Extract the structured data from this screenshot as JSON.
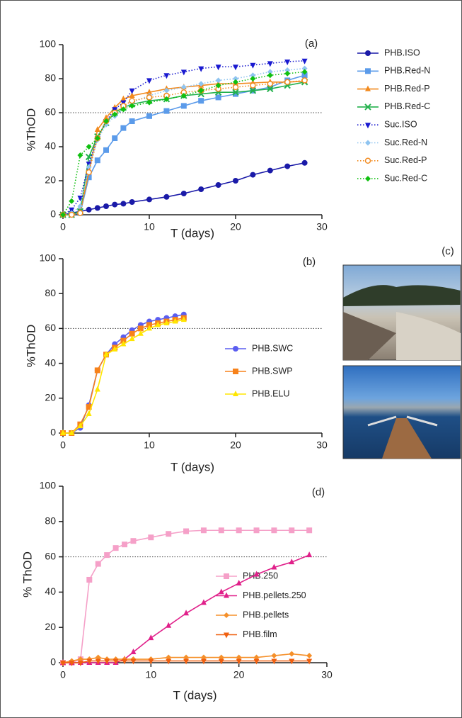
{
  "chart_data": [
    {
      "type": "line",
      "label": "(a)",
      "xlabel": "T (days)",
      "ylabel": "%ThOD",
      "xlim": [
        0,
        30
      ],
      "xticks": [
        0,
        10,
        20,
        30
      ],
      "ylim": [
        0,
        100
      ],
      "yticks": [
        0,
        20,
        40,
        60,
        80,
        100
      ],
      "hline": 60,
      "legend": "right",
      "x": [
        0,
        1,
        2,
        3,
        4,
        5,
        6,
        7,
        8,
        10,
        12,
        14,
        16,
        18,
        20,
        22,
        24,
        26,
        28
      ],
      "series": [
        {
          "name": "PHB.ISO",
          "color": "#1a1aa8",
          "marker": "circle",
          "dash": "solid",
          "values": [
            0,
            1,
            2,
            3,
            4,
            5,
            6,
            6.5,
            7.5,
            9,
            10.5,
            12.5,
            15,
            17.5,
            20,
            23.5,
            26,
            28.5,
            30.5
          ]
        },
        {
          "name": "PHB.Red-N",
          "color": "#5b9bea",
          "marker": "square",
          "dash": "solid",
          "values": [
            0,
            0,
            1,
            22,
            32,
            38,
            45,
            51,
            55,
            58,
            61,
            64,
            67,
            69,
            71,
            73,
            75,
            79,
            82
          ]
        },
        {
          "name": "PHB.Red-P",
          "color": "#f28a1e",
          "marker": "triangle",
          "dash": "solid",
          "values": [
            0,
            0,
            2,
            25,
            50,
            57,
            63,
            68,
            70,
            72,
            74,
            75,
            76,
            77,
            77,
            77.5,
            78,
            78,
            78.5
          ]
        },
        {
          "name": "PHB.Red-C",
          "color": "#22b14c",
          "marker": "cross",
          "dash": "solid",
          "values": [
            0,
            0,
            2,
            34,
            46,
            54,
            60,
            63,
            65,
            67,
            68,
            70,
            71,
            72,
            72,
            73,
            74,
            76,
            78
          ]
        },
        {
          "name": "Suc.ISO",
          "color": "#1a1ad0",
          "marker": "triangle-down",
          "dash": "dotted",
          "values": [
            0,
            3,
            10,
            30,
            45,
            55,
            62,
            66,
            73,
            79,
            82,
            84,
            86,
            87,
            87,
            88,
            89,
            90,
            90.5
          ]
        },
        {
          "name": "Suc.Red-N",
          "color": "#8fc4f0",
          "marker": "diamond",
          "dash": "dotted",
          "values": [
            0,
            1,
            5,
            28,
            44,
            53,
            58,
            62,
            66,
            70,
            73,
            75,
            77,
            79,
            80,
            82,
            84,
            85,
            86
          ]
        },
        {
          "name": "Suc.Red-P",
          "color": "#f28a1e",
          "marker": "open-circle",
          "dash": "dotted",
          "values": [
            0,
            0,
            1,
            25,
            45,
            55,
            60,
            64,
            67,
            69,
            70,
            72,
            73,
            74,
            75,
            76,
            77,
            78,
            79
          ]
        },
        {
          "name": "Suc.Red-C",
          "color": "#10c010",
          "marker": "diamond",
          "dash": "dotted",
          "values": [
            0,
            8,
            35,
            40,
            45,
            55,
            59,
            62,
            64,
            66,
            68,
            70,
            73,
            76,
            78,
            80,
            82,
            83,
            84
          ]
        }
      ]
    },
    {
      "type": "line",
      "label": "(b)",
      "xlabel": "T (days)",
      "ylabel": "%ThOD",
      "xlim": [
        0,
        30
      ],
      "xticks": [
        0,
        10,
        20,
        30
      ],
      "ylim": [
        0,
        100
      ],
      "yticks": [
        0,
        20,
        40,
        60,
        80,
        100
      ],
      "hline": 60,
      "legend": "center-right",
      "x": [
        0,
        1,
        2,
        3,
        4,
        5,
        6,
        7,
        8,
        9,
        10,
        11,
        12,
        13,
        14
      ],
      "series": [
        {
          "name": "PHB.SWC",
          "color": "#5b5ef0",
          "marker": "circle",
          "dash": "solid",
          "values": [
            0,
            0,
            3,
            16,
            36,
            45,
            51,
            55,
            59,
            62,
            64,
            65,
            66,
            67,
            68
          ]
        },
        {
          "name": "PHB.SWP",
          "color": "#f7821b",
          "marker": "square",
          "dash": "solid",
          "values": [
            0,
            0,
            5,
            15,
            36,
            45,
            49,
            53,
            57,
            60,
            62,
            63,
            64,
            65,
            66
          ]
        },
        {
          "name": "PHB.ELU",
          "color": "#ffe600",
          "marker": "triangle",
          "dash": "solid",
          "values": [
            0,
            0,
            4,
            11,
            25,
            45,
            48,
            51,
            54,
            57,
            60,
            62,
            63,
            64,
            65
          ]
        }
      ]
    },
    {
      "type": "photos",
      "label": "(c)"
    },
    {
      "type": "line",
      "label": "(d)",
      "xlabel": "T (days)",
      "ylabel": "% ThOD",
      "xlim": [
        0,
        30
      ],
      "xticks": [
        0,
        10,
        20,
        30
      ],
      "ylim": [
        0,
        100
      ],
      "yticks": [
        0,
        20,
        40,
        60,
        80,
        100
      ],
      "hline": 60,
      "legend": "lower-right",
      "x": [
        0,
        1,
        2,
        3,
        4,
        5,
        6,
        7,
        8,
        10,
        12,
        14,
        16,
        18,
        20,
        22,
        24,
        26,
        28
      ],
      "series": [
        {
          "name": "PHB.250",
          "color": "#f5a0c8",
          "marker": "square",
          "dash": "solid",
          "values": [
            0,
            0,
            2,
            47,
            56,
            61,
            65,
            67,
            69,
            71,
            73,
            74.5,
            75,
            75,
            75,
            75,
            75,
            75,
            75
          ]
        },
        {
          "name": "PHB.pellets.250",
          "color": "#e0208a",
          "marker": "triangle",
          "dash": "solid",
          "values": [
            0,
            0,
            0,
            0,
            0,
            0,
            0,
            2,
            6,
            14,
            21,
            28,
            34,
            40,
            45,
            50,
            54,
            57,
            61
          ]
        },
        {
          "name": "PHB.pellets",
          "color": "#f5902a",
          "marker": "diamond",
          "dash": "solid",
          "values": [
            0,
            1,
            2,
            2,
            3,
            2,
            2,
            2,
            2,
            2,
            3,
            3,
            3,
            3,
            3,
            3,
            4,
            5,
            4
          ]
        },
        {
          "name": "PHB.film",
          "color": "#f06010",
          "marker": "triangle-down",
          "dash": "solid",
          "values": [
            0,
            0,
            0,
            1,
            1,
            1,
            1,
            1,
            1,
            1,
            1,
            1,
            1,
            1,
            1,
            1,
            1,
            1,
            1
          ]
        }
      ]
    }
  ]
}
